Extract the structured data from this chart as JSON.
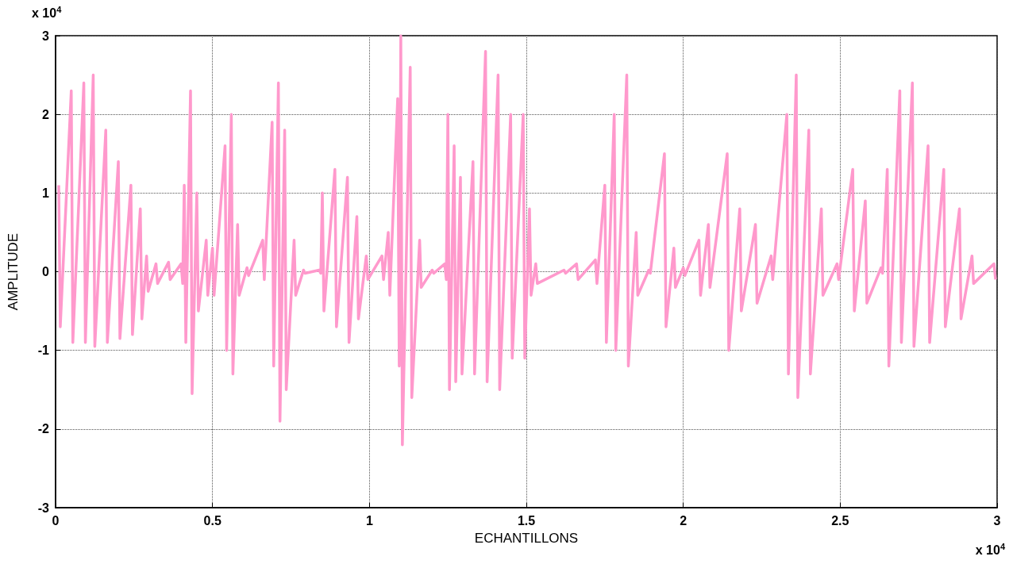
{
  "chart_data": {
    "type": "line",
    "xlabel": "ECHANTILLONS",
    "ylabel": "AMPLITUDE",
    "annotations": [
      "x 10$^{4}$",
      "x 10$^{4}$"
    ],
    "xlim": [
      0,
      3
    ],
    "ylim": [
      -3,
      3
    ],
    "xticks": [
      0,
      0.5,
      1,
      1.5,
      2,
      2.5,
      3
    ],
    "yticks": [
      -3,
      -2,
      -1,
      0,
      1,
      2,
      3
    ],
    "grid": true,
    "marker": "none",
    "line_style": "solid",
    "series": [
      {
        "color": "#ff99cc",
        "x": [
          0.01,
          0.015,
          0.05,
          0.055,
          0.09,
          0.095,
          0.12,
          0.125,
          0.16,
          0.165,
          0.2,
          0.205,
          0.24,
          0.245,
          0.27,
          0.275,
          0.29,
          0.295,
          0.32,
          0.325,
          0.36,
          0.365,
          0.4,
          0.405,
          0.41,
          0.415,
          0.43,
          0.435,
          0.45,
          0.455,
          0.48,
          0.485,
          0.5,
          0.505,
          0.54,
          0.545,
          0.56,
          0.565,
          0.58,
          0.585,
          0.61,
          0.615,
          0.66,
          0.665,
          0.69,
          0.695,
          0.71,
          0.715,
          0.73,
          0.735,
          0.76,
          0.765,
          0.79,
          0.795,
          0.84,
          0.845,
          0.85,
          0.855,
          0.89,
          0.895,
          0.93,
          0.935,
          0.96,
          0.965,
          0.99,
          0.995,
          1.04,
          1.045,
          1.06,
          1.065,
          1.09,
          1.095,
          1.1,
          1.105,
          1.13,
          1.135,
          1.16,
          1.165,
          1.2,
          1.205,
          1.24,
          1.245,
          1.25,
          1.255,
          1.27,
          1.275,
          1.29,
          1.295,
          1.33,
          1.335,
          1.37,
          1.375,
          1.41,
          1.415,
          1.45,
          1.455,
          1.49,
          1.495,
          1.51,
          1.515,
          1.53,
          1.535,
          1.62,
          1.625,
          1.66,
          1.665,
          1.72,
          1.725,
          1.75,
          1.755,
          1.78,
          1.785,
          1.82,
          1.825,
          1.85,
          1.855,
          1.89,
          1.895,
          1.94,
          1.945,
          1.97,
          1.975,
          2,
          2.005,
          2.05,
          2.055,
          2.08,
          2.085,
          2.14,
          2.145,
          2.18,
          2.185,
          2.23,
          2.235,
          2.28,
          2.285,
          2.33,
          2.335,
          2.36,
          2.365,
          2.4,
          2.405,
          2.44,
          2.445,
          2.49,
          2.495,
          2.54,
          2.545,
          2.58,
          2.585,
          2.63,
          2.635,
          2.65,
          2.655,
          2.69,
          2.695,
          2.73,
          2.735,
          2.78,
          2.785,
          2.83,
          2.835,
          2.88,
          2.885,
          2.92,
          2.925,
          2.99,
          2.995
        ],
        "values": [
          1.1,
          -0.7,
          2.3,
          -0.9,
          2.4,
          -0.9,
          2.5,
          -0.95,
          1.8,
          -0.9,
          1.4,
          -0.85,
          1.1,
          -0.8,
          0.8,
          -0.6,
          0.2,
          -0.25,
          0.1,
          -0.15,
          0.12,
          -0.1,
          0.1,
          -0.15,
          1.1,
          -0.9,
          2.3,
          -1.55,
          1,
          -0.5,
          0.4,
          -0.3,
          0.3,
          -0.3,
          1.6,
          -1,
          2,
          -1.3,
          0.6,
          -0.3,
          0.05,
          -0.05,
          0.4,
          -0.1,
          1.9,
          -1.2,
          2.4,
          -1.9,
          1.8,
          -1.5,
          0.4,
          -0.3,
          0.02,
          -0.02,
          0.02,
          -0.02,
          1,
          -0.5,
          1.3,
          -0.7,
          1.2,
          -0.9,
          0.7,
          -0.6,
          0.2,
          -0.1,
          0.2,
          -0.1,
          0.5,
          -0.3,
          2.2,
          -1.2,
          3,
          -2.2,
          2.6,
          -1.6,
          0.4,
          -0.2,
          0.02,
          -0.02,
          0.1,
          -0.1,
          2,
          -1.5,
          1.6,
          -1.4,
          1.2,
          -1.3,
          1.4,
          -1.3,
          2.8,
          -1.4,
          2.5,
          -1.5,
          2,
          -1.1,
          2,
          -1.1,
          0.8,
          -0.3,
          0.1,
          -0.15,
          0.02,
          -0.02,
          0.1,
          -0.1,
          0.15,
          -0.15,
          1.1,
          -0.9,
          2,
          -1,
          2.5,
          -1.2,
          0.5,
          -0.3,
          0.02,
          -0.02,
          1.5,
          -0.7,
          0.3,
          -0.2,
          0.05,
          -0.05,
          0.4,
          -0.3,
          0.6,
          -0.2,
          1.5,
          -1,
          0.8,
          -0.5,
          0.6,
          -0.4,
          0.2,
          -0.1,
          2,
          -1.3,
          2.5,
          -1.6,
          1.8,
          -1.3,
          0.8,
          -0.3,
          0.1,
          -0.1,
          1.3,
          -0.5,
          0.9,
          -0.4,
          0.05,
          -0.02,
          1.3,
          -1.2,
          2.3,
          -0.9,
          2.4,
          -0.95,
          1.6,
          -0.9,
          1.3,
          -0.7,
          0.8,
          -0.6,
          0.2,
          -0.15,
          0.1,
          -0.1
        ]
      }
    ]
  }
}
